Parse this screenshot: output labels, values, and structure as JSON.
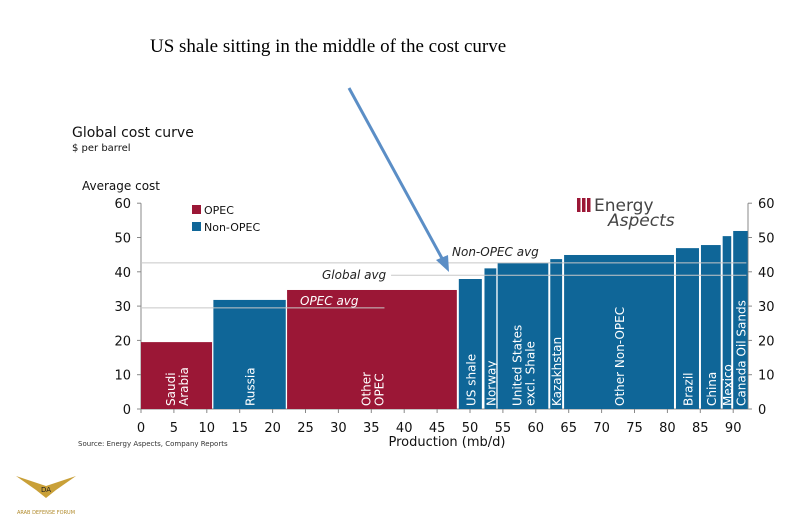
{
  "annotation": "US shale sitting in the middle of the cost curve",
  "watermark": "ARAB DEFENSE FORUM",
  "chart_data": {
    "type": "bar",
    "title": "Global cost curve",
    "subtitle": "$ per barrel",
    "ylabel": "Average cost",
    "xlabel": "Production (mb/d)",
    "source": "Source: Energy Aspects, Company Reports",
    "logo": "Energy Aspects",
    "xlim": [
      0,
      93
    ],
    "ylim": [
      0,
      60
    ],
    "xticks": [
      0,
      5,
      10,
      15,
      20,
      25,
      30,
      35,
      40,
      45,
      50,
      55,
      60,
      65,
      70,
      75,
      80,
      85,
      90
    ],
    "yticks": [
      0,
      10,
      20,
      30,
      40,
      50,
      60
    ],
    "legend": {
      "position": "top-left",
      "items": [
        {
          "name": "OPEC",
          "color": "#9b1736"
        },
        {
          "name": "Non-OPEC",
          "color": "#0f6698"
        }
      ]
    },
    "bars": [
      {
        "label": "Saudi Arabia",
        "x0": 0,
        "x1": 10.8,
        "value": 19.5,
        "group": "OPEC"
      },
      {
        "label": "Russia",
        "x0": 11,
        "x1": 22,
        "value": 31.8,
        "group": "Non-OPEC"
      },
      {
        "label": "Other OPEC",
        "x0": 22.2,
        "x1": 48,
        "value": 34.7,
        "group": "OPEC"
      },
      {
        "label": "US  shale",
        "x0": 48.3,
        "x1": 51.8,
        "value": 37.9,
        "group": "Non-OPEC"
      },
      {
        "label": "Norway",
        "x0": 52.2,
        "x1": 54,
        "value": 41,
        "group": "Non-OPEC"
      },
      {
        "label": "United States excl. Shale",
        "x0": 54.2,
        "x1": 61.9,
        "value": 42.6,
        "group": "Non-OPEC"
      },
      {
        "label": "Kazakhstan",
        "x0": 62.2,
        "x1": 64,
        "value": 43.7,
        "group": "Non-OPEC"
      },
      {
        "label": "Other Non-OPEC",
        "x0": 64.3,
        "x1": 81,
        "value": 44.9,
        "group": "Non-OPEC"
      },
      {
        "label": "Brazil",
        "x0": 81.3,
        "x1": 84.8,
        "value": 46.9,
        "group": "Non-OPEC"
      },
      {
        "label": "China",
        "x0": 85.1,
        "x1": 88.1,
        "value": 47.8,
        "group": "Non-OPEC"
      },
      {
        "label": "Mexico",
        "x0": 88.4,
        "x1": 89.7,
        "value": 50.4,
        "group": "Non-OPEC"
      },
      {
        "label": "Canada Oil Sands",
        "x0": 90,
        "x1": 92.2,
        "value": 51.9,
        "group": "Non-OPEC"
      }
    ],
    "reference_lines": [
      {
        "label": "Non-OPEC avg",
        "value": 42.6,
        "x0": 0,
        "x1": 92
      },
      {
        "label": "Global avg",
        "value": 39,
        "x0": 38,
        "x1": 92
      },
      {
        "label": "OPEC avg",
        "value": 29.5,
        "x0": 0,
        "x1": 37
      }
    ]
  }
}
